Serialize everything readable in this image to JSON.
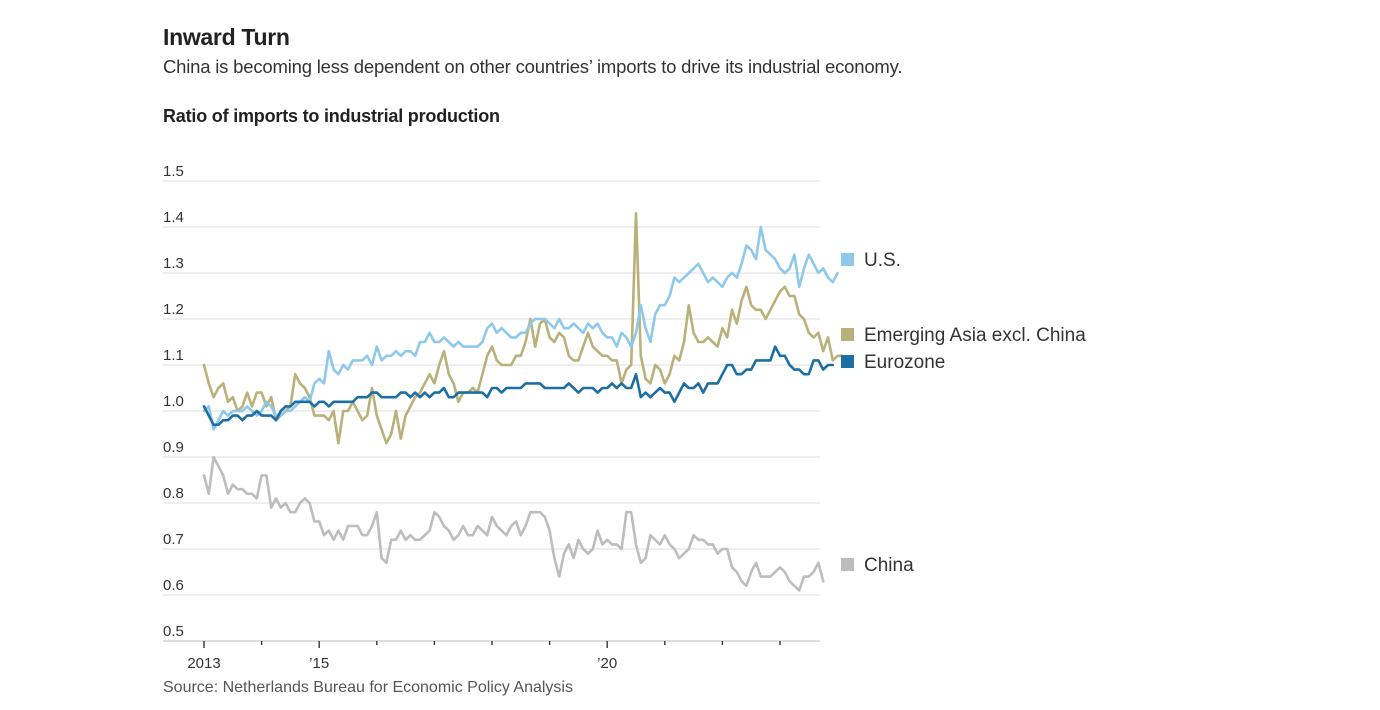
{
  "header": {
    "title": "Inward Turn",
    "subtitle": "China is becoming less dependent on other countries’ imports to drive its industrial economy.",
    "chart_heading": "Ratio of imports to industrial production"
  },
  "footer": {
    "source": "Source: Netherlands Bureau for Economic Policy Analysis"
  },
  "chart_data": {
    "type": "line",
    "title": "Ratio of imports to industrial production",
    "xlabel": "",
    "ylabel": "",
    "ylim": [
      0.5,
      1.5
    ],
    "yticks": [
      0.5,
      0.6,
      0.7,
      0.8,
      0.9,
      1.0,
      1.1,
      1.2,
      1.3,
      1.4,
      1.5
    ],
    "ytick_labels": [
      "0.5",
      "0.6",
      "0.7",
      "0.8",
      "0.9",
      "1.0",
      "1.1",
      "1.2",
      "1.3",
      "1.4",
      "1.5"
    ],
    "xlim": [
      2013.0,
      2023.65
    ],
    "xticks": [
      2013,
      2014,
      2015,
      2016,
      2017,
      2018,
      2019,
      2020,
      2021,
      2022,
      2023
    ],
    "xtick_labels": [
      "2013",
      "",
      "’15",
      "",
      "",
      "",
      "",
      "’20",
      "",
      "",
      ""
    ],
    "major_xticks": [
      2013,
      2015,
      2020
    ],
    "grid": "horizontal",
    "legend": "right, labels placed next to line ends",
    "x_start": 2013.0,
    "x_step_months": 1,
    "series": [
      {
        "name": "U.S.",
        "color": "#8ec8ea",
        "legend_value_anchor": 1.3,
        "values": [
          1.0,
          1.01,
          0.96,
          0.98,
          1.0,
          0.99,
          1.0,
          1.0,
          1.0,
          1.01,
          1.0,
          0.99,
          1.0,
          1.02,
          1.01,
          0.99,
          0.99,
          1.0,
          1.0,
          1.01,
          1.02,
          1.03,
          1.02,
          1.06,
          1.07,
          1.06,
          1.13,
          1.09,
          1.08,
          1.1,
          1.09,
          1.11,
          1.11,
          1.11,
          1.12,
          1.1,
          1.14,
          1.11,
          1.12,
          1.12,
          1.13,
          1.12,
          1.13,
          1.13,
          1.12,
          1.15,
          1.15,
          1.17,
          1.15,
          1.15,
          1.16,
          1.15,
          1.14,
          1.15,
          1.14,
          1.14,
          1.14,
          1.14,
          1.15,
          1.18,
          1.19,
          1.17,
          1.18,
          1.17,
          1.16,
          1.16,
          1.17,
          1.17,
          1.19,
          1.2,
          1.2,
          1.2,
          1.19,
          1.18,
          1.2,
          1.18,
          1.18,
          1.19,
          1.18,
          1.17,
          1.19,
          1.18,
          1.19,
          1.17,
          1.16,
          1.16,
          1.14,
          1.17,
          1.16,
          1.14,
          1.17,
          1.23,
          1.18,
          1.15,
          1.21,
          1.23,
          1.23,
          1.25,
          1.29,
          1.28,
          1.29,
          1.3,
          1.31,
          1.32,
          1.3,
          1.28,
          1.29,
          1.28,
          1.27,
          1.29,
          1.3,
          1.29,
          1.32,
          1.36,
          1.35,
          1.33,
          1.4,
          1.35,
          1.34,
          1.33,
          1.31,
          1.3,
          1.31,
          1.34,
          1.27,
          1.31,
          1.34,
          1.32,
          1.3,
          1.31,
          1.29,
          1.28,
          1.3
        ]
      },
      {
        "name": "Emerging Asia excl. China",
        "color": "#b9b07a",
        "legend_value_anchor": 1.12,
        "values": [
          1.1,
          1.06,
          1.03,
          1.05,
          1.06,
          1.02,
          1.03,
          1.0,
          1.01,
          1.04,
          1.01,
          1.04,
          1.04,
          1.01,
          1.03,
          0.98,
          0.99,
          1.0,
          1.01,
          1.08,
          1.06,
          1.05,
          1.03,
          0.99,
          0.99,
          0.99,
          0.98,
          1.0,
          0.93,
          1.0,
          1.0,
          1.02,
          1.0,
          0.98,
          0.99,
          1.05,
          0.99,
          0.96,
          0.93,
          0.95,
          1.0,
          0.94,
          0.99,
          1.01,
          1.03,
          1.04,
          1.06,
          1.08,
          1.06,
          1.1,
          1.13,
          1.08,
          1.06,
          1.02,
          1.04,
          1.04,
          1.05,
          1.04,
          1.08,
          1.12,
          1.14,
          1.11,
          1.1,
          1.1,
          1.1,
          1.12,
          1.12,
          1.15,
          1.2,
          1.14,
          1.19,
          1.2,
          1.16,
          1.15,
          1.17,
          1.16,
          1.12,
          1.11,
          1.11,
          1.14,
          1.17,
          1.14,
          1.13,
          1.12,
          1.12,
          1.11,
          1.11,
          1.06,
          1.09,
          1.1,
          1.43,
          1.12,
          1.07,
          1.06,
          1.1,
          1.09,
          1.06,
          1.08,
          1.12,
          1.11,
          1.15,
          1.23,
          1.17,
          1.15,
          1.15,
          1.16,
          1.15,
          1.14,
          1.18,
          1.16,
          1.22,
          1.19,
          1.24,
          1.27,
          1.23,
          1.22,
          1.22,
          1.2,
          1.22,
          1.24,
          1.26,
          1.27,
          1.25,
          1.25,
          1.21,
          1.2,
          1.17,
          1.16,
          1.17,
          1.13,
          1.16,
          1.11,
          1.12,
          1.12
        ]
      },
      {
        "name": "Eurozone",
        "color": "#1d6fa3",
        "legend_value_anchor": 1.06,
        "values": [
          1.01,
          0.99,
          0.97,
          0.97,
          0.98,
          0.98,
          0.99,
          0.99,
          0.98,
          0.99,
          0.99,
          1.0,
          0.99,
          0.99,
          0.99,
          0.98,
          1.0,
          1.01,
          1.01,
          1.02,
          1.02,
          1.02,
          1.02,
          1.01,
          1.02,
          1.02,
          1.01,
          1.02,
          1.02,
          1.02,
          1.02,
          1.02,
          1.03,
          1.03,
          1.03,
          1.04,
          1.04,
          1.03,
          1.03,
          1.03,
          1.03,
          1.04,
          1.04,
          1.03,
          1.04,
          1.03,
          1.04,
          1.03,
          1.04,
          1.04,
          1.05,
          1.03,
          1.03,
          1.04,
          1.04,
          1.04,
          1.04,
          1.04,
          1.04,
          1.03,
          1.05,
          1.05,
          1.04,
          1.05,
          1.05,
          1.05,
          1.05,
          1.06,
          1.06,
          1.06,
          1.06,
          1.05,
          1.05,
          1.05,
          1.05,
          1.05,
          1.06,
          1.05,
          1.04,
          1.05,
          1.05,
          1.05,
          1.04,
          1.05,
          1.05,
          1.06,
          1.05,
          1.06,
          1.05,
          1.05,
          1.08,
          1.03,
          1.04,
          1.03,
          1.04,
          1.05,
          1.04,
          1.04,
          1.02,
          1.04,
          1.06,
          1.05,
          1.05,
          1.06,
          1.04,
          1.06,
          1.06,
          1.06,
          1.08,
          1.1,
          1.1,
          1.08,
          1.08,
          1.09,
          1.09,
          1.11,
          1.11,
          1.11,
          1.11,
          1.14,
          1.12,
          1.12,
          1.1,
          1.09,
          1.09,
          1.08,
          1.08,
          1.11,
          1.11,
          1.09,
          1.1,
          1.1
        ]
      },
      {
        "name": "China",
        "color": "#bdbdbd",
        "legend_value_anchor": 0.64,
        "values": [
          0.86,
          0.82,
          0.9,
          0.88,
          0.86,
          0.82,
          0.84,
          0.83,
          0.83,
          0.82,
          0.82,
          0.81,
          0.86,
          0.86,
          0.79,
          0.81,
          0.79,
          0.8,
          0.78,
          0.78,
          0.8,
          0.81,
          0.8,
          0.76,
          0.76,
          0.73,
          0.74,
          0.72,
          0.74,
          0.72,
          0.75,
          0.75,
          0.75,
          0.73,
          0.73,
          0.75,
          0.78,
          0.68,
          0.67,
          0.72,
          0.72,
          0.74,
          0.72,
          0.73,
          0.72,
          0.72,
          0.73,
          0.74,
          0.78,
          0.77,
          0.75,
          0.74,
          0.72,
          0.73,
          0.75,
          0.73,
          0.73,
          0.75,
          0.74,
          0.73,
          0.77,
          0.75,
          0.74,
          0.73,
          0.75,
          0.76,
          0.73,
          0.75,
          0.78,
          0.78,
          0.78,
          0.77,
          0.74,
          0.68,
          0.64,
          0.69,
          0.71,
          0.68,
          0.72,
          0.7,
          0.69,
          0.7,
          0.74,
          0.71,
          0.72,
          0.71,
          0.71,
          0.7,
          0.78,
          0.78,
          0.71,
          0.67,
          0.68,
          0.73,
          0.72,
          0.71,
          0.73,
          0.71,
          0.7,
          0.68,
          0.69,
          0.7,
          0.73,
          0.72,
          0.72,
          0.71,
          0.71,
          0.69,
          0.7,
          0.7,
          0.66,
          0.65,
          0.63,
          0.62,
          0.65,
          0.67,
          0.64,
          0.64,
          0.64,
          0.65,
          0.66,
          0.65,
          0.63,
          0.62,
          0.61,
          0.64,
          0.64,
          0.65,
          0.67,
          0.63
        ]
      }
    ]
  }
}
